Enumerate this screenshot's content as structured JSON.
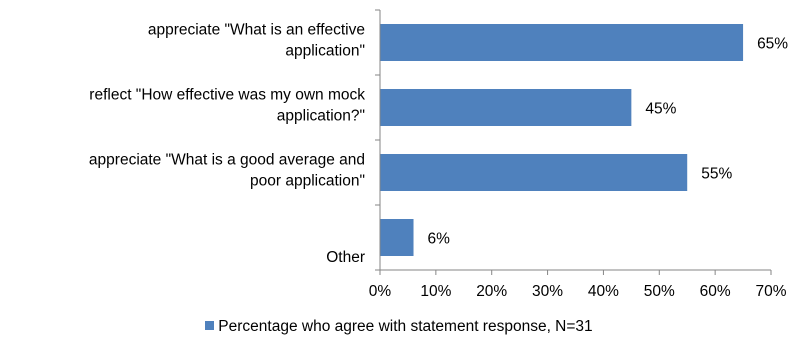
{
  "chart_data": {
    "type": "bar",
    "orientation": "horizontal",
    "categories": [
      [
        "appreciate \"What is an effective",
        "application\""
      ],
      [
        "reflect \"How effective was my own mock",
        "application?\""
      ],
      [
        "appreciate \"What is a good average and",
        "poor application\""
      ],
      [
        "Other"
      ]
    ],
    "series": [
      {
        "name": "Percentage who agree with statement response, N=31",
        "values": [
          65,
          45,
          55,
          6
        ],
        "labels": [
          "65%",
          "45%",
          "55%",
          "6%"
        ],
        "color": "#4f81bd"
      }
    ],
    "xlim": [
      0,
      70
    ],
    "xticks": [
      0,
      10,
      20,
      30,
      40,
      50,
      60,
      70
    ],
    "xtick_labels": [
      "0%",
      "10%",
      "20%",
      "30%",
      "40%",
      "50%",
      "60%",
      "70%"
    ],
    "grid": false,
    "legend_position": "bottom"
  }
}
